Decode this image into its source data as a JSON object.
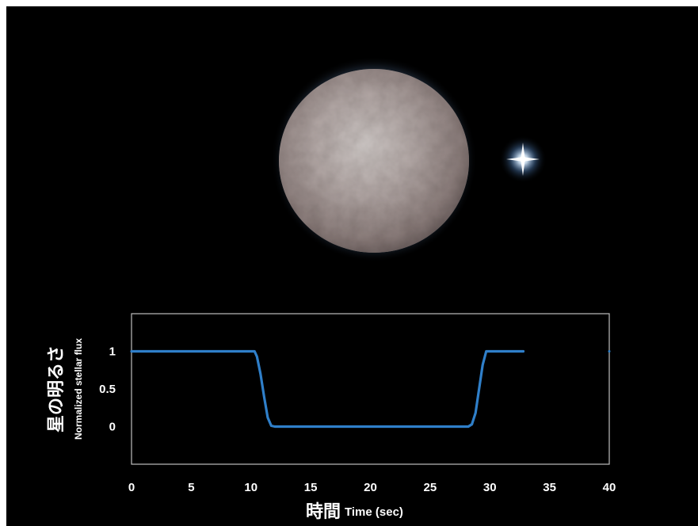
{
  "colors": {
    "background": "#000000",
    "series_line": "#2f7fc9",
    "plot_border": "#bfbfbf",
    "text": "#ffffff"
  },
  "scene": {
    "asteroid": "asteroid-image",
    "star": "background-star"
  },
  "chart_data": {
    "type": "line",
    "xlabel_main": "時間",
    "xlabel_sub": "Time (sec)",
    "ylabel_main": "星の明るさ",
    "ylabel_sub": "Normalized stellar flux",
    "xlim": [
      0,
      40
    ],
    "ylim": [
      -0.5,
      1.5
    ],
    "x_ticks": [
      0,
      5,
      10,
      15,
      20,
      25,
      30,
      35,
      40
    ],
    "y_ticks": [
      0,
      0.5,
      1
    ],
    "grid": false,
    "legend": "none",
    "series": [
      {
        "x": [
          0,
          10.3,
          10.5,
          10.8,
          11.1,
          11.4,
          11.7,
          12.0,
          28.2,
          28.5,
          28.8,
          29.1,
          29.4,
          29.7,
          32.8
        ],
        "y": [
          1,
          1,
          0.93,
          0.7,
          0.4,
          0.12,
          0.01,
          0,
          0,
          0.03,
          0.18,
          0.5,
          0.82,
          1,
          1
        ]
      }
    ],
    "right_edge_mark": {
      "x": 40,
      "y": 1
    }
  }
}
